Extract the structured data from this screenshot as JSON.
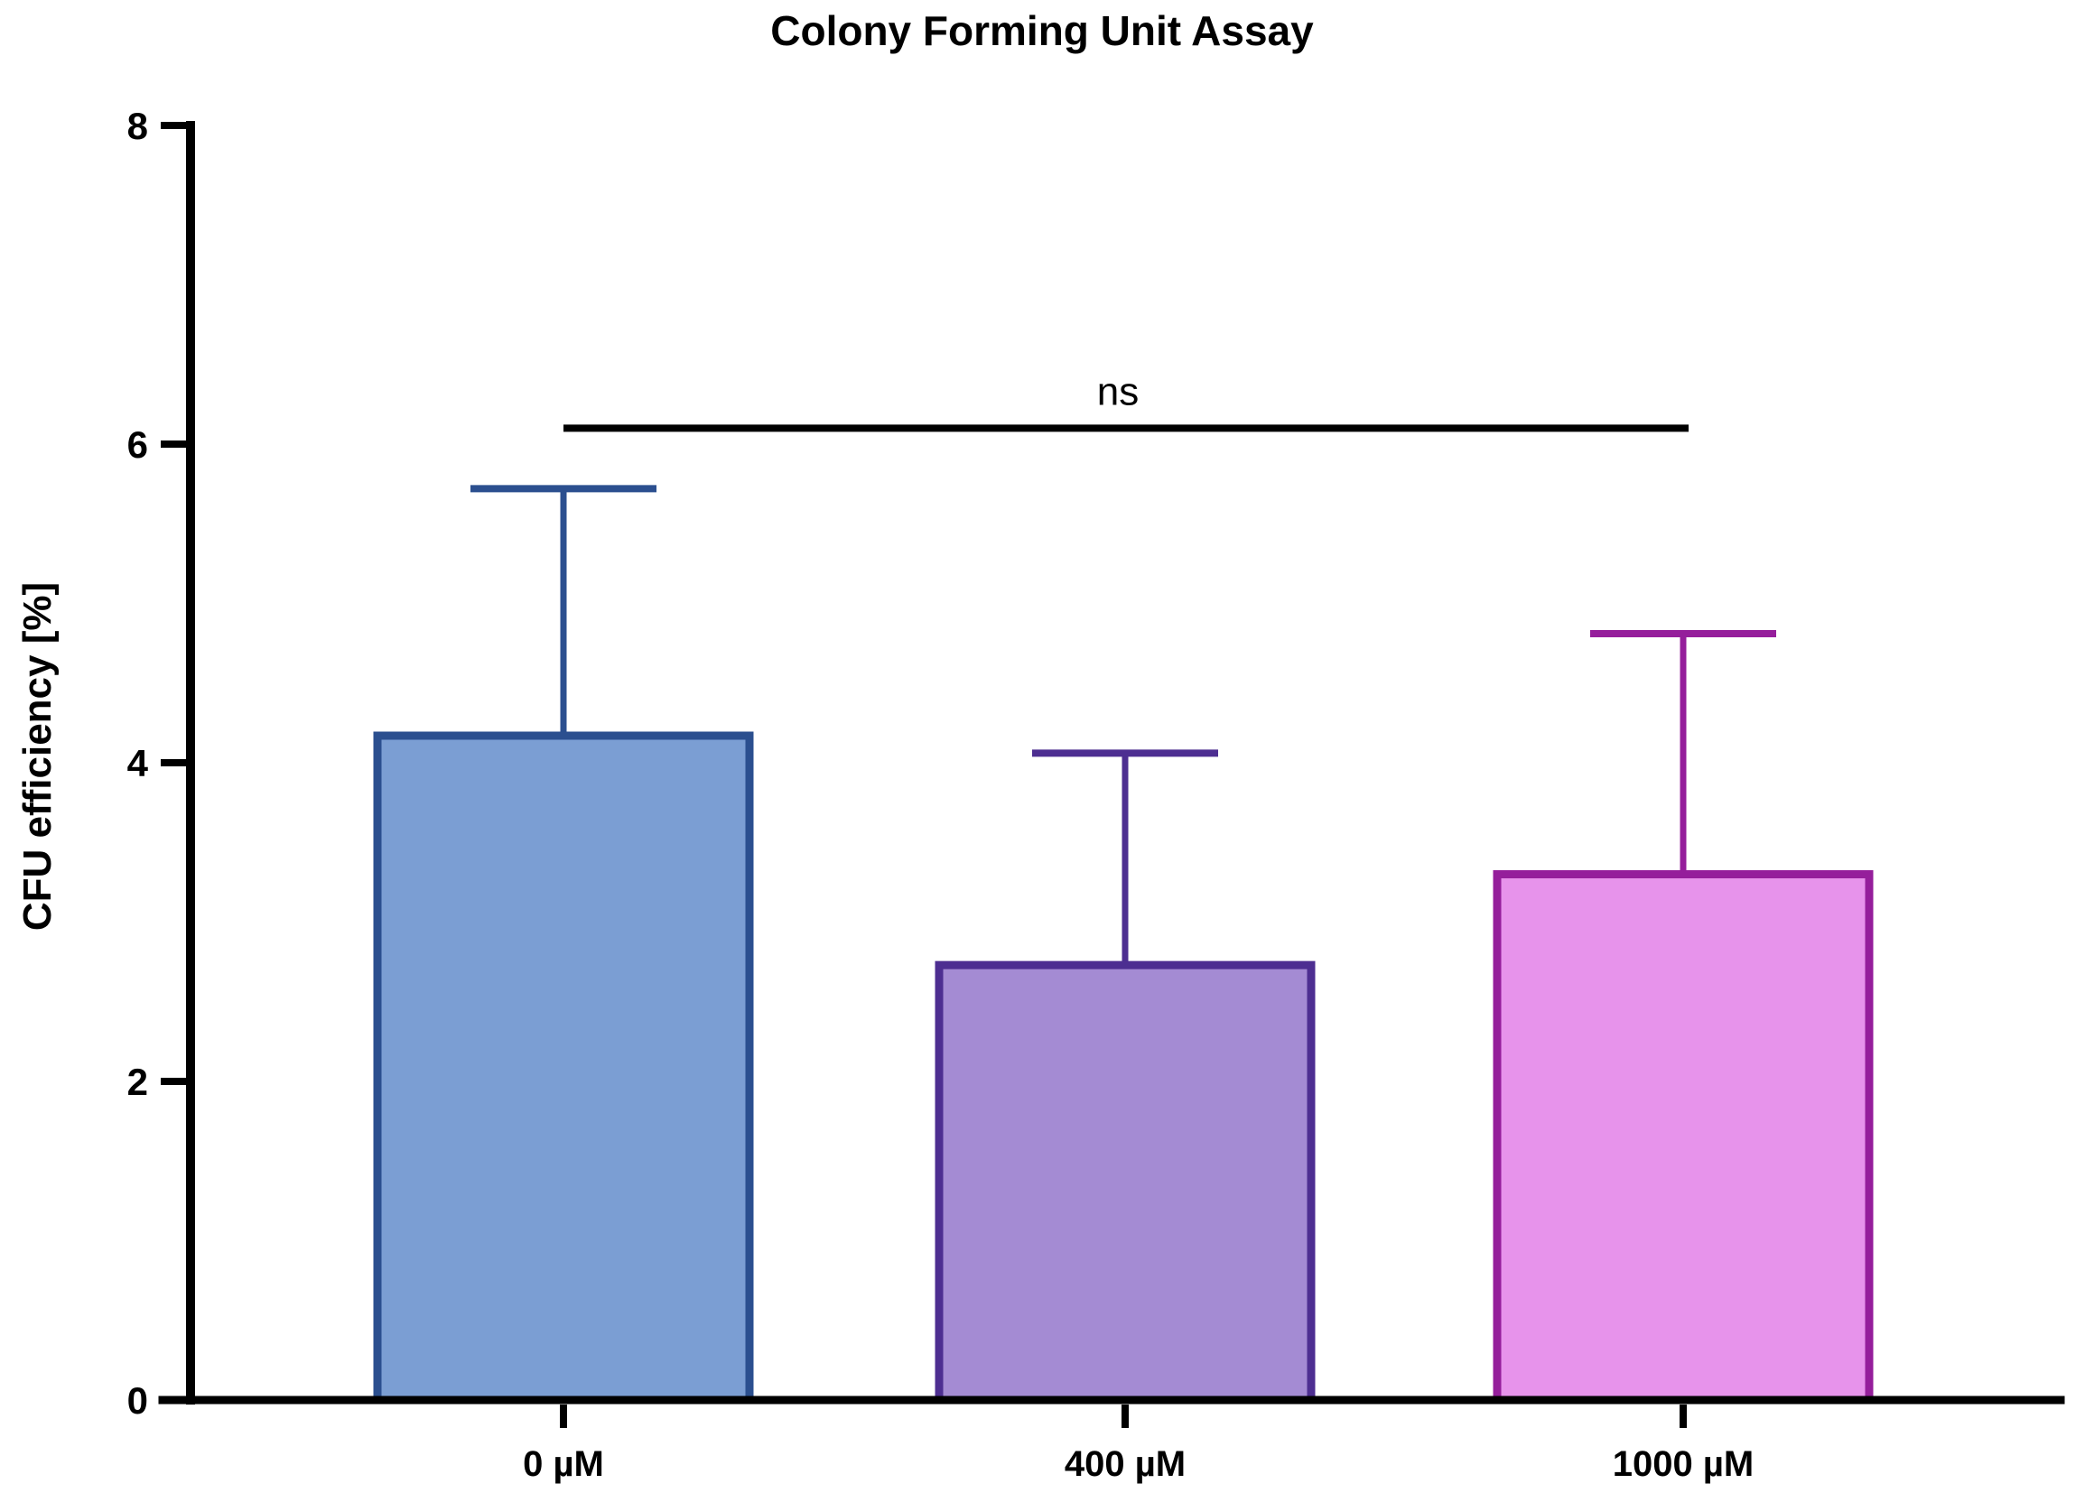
{
  "chart_data": {
    "type": "bar",
    "title": "Colony Forming Unit Assay",
    "xlabel": "",
    "ylabel": "CFU efficiency [%]",
    "categories": [
      "0 µM",
      "400 µM",
      "1000 µM"
    ],
    "values": [
      4.17,
      2.73,
      3.3
    ],
    "upper_errors": [
      1.55,
      1.33,
      1.51
    ],
    "error_top_values": [
      5.72,
      4.06,
      4.81
    ],
    "ylim": [
      0,
      8
    ],
    "yticks": [
      0,
      2,
      4,
      6,
      8
    ],
    "grid": false,
    "legend": null,
    "error_bar_direction": "upper-only",
    "bar_styles": [
      {
        "category": "0 µM",
        "fill": "#7B9ED3",
        "border": "#2B4F8F"
      },
      {
        "category": "400 µM",
        "fill": "#A48BD3",
        "border": "#4D2E91"
      },
      {
        "category": "1000 µM",
        "fill": "#E793EB",
        "border": "#951E9B"
      }
    ],
    "significance": {
      "label": "ns",
      "from": "0 µM",
      "to": "1000 µM",
      "y_value": 6.1
    },
    "axis_color": "#000000",
    "text_color": "#000000",
    "background": "#FFFFFF"
  }
}
